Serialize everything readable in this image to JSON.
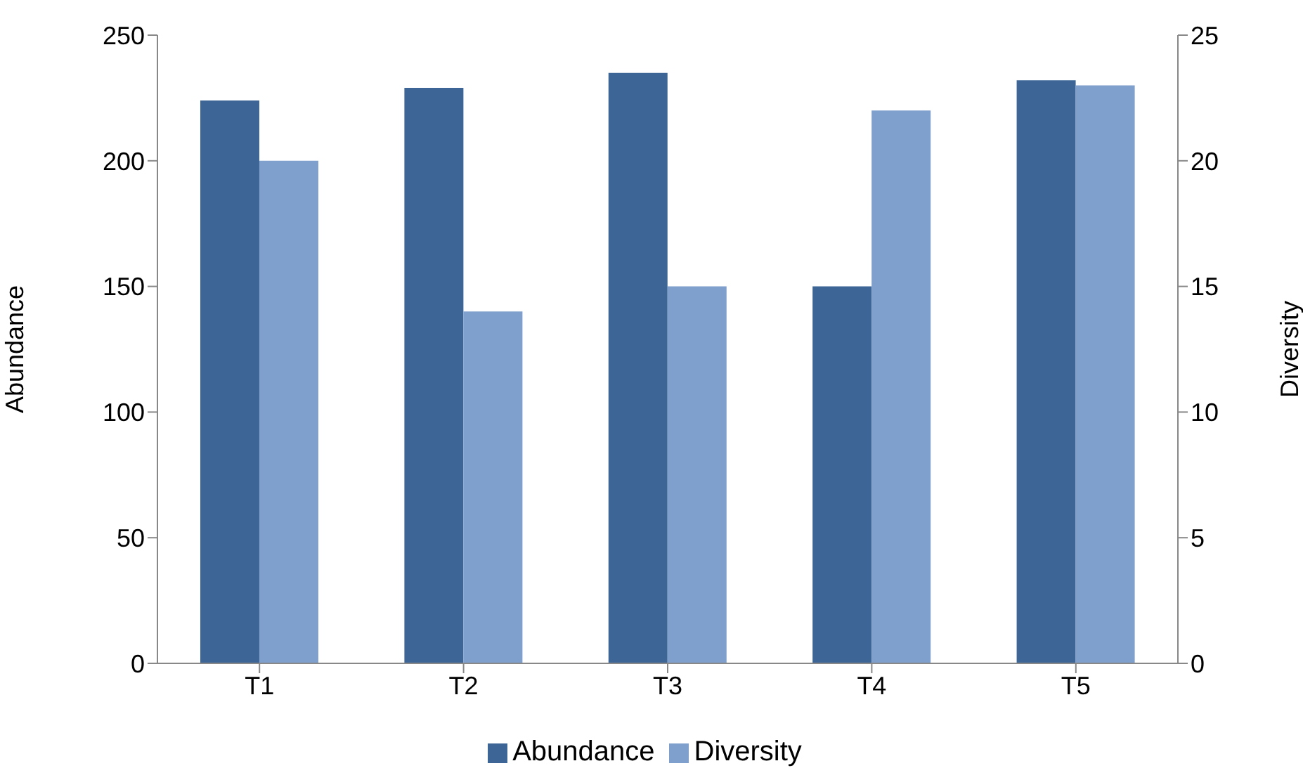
{
  "chart_data": {
    "type": "bar",
    "categories": [
      "T1",
      "T2",
      "T3",
      "T4",
      "T5"
    ],
    "series": [
      {
        "name": "Abundance",
        "color": "#3d6697",
        "values": [
          224,
          229,
          235,
          150,
          232
        ]
      },
      {
        "name": "Diversity",
        "color": "#7f9fcc",
        "values": [
          20,
          14,
          15,
          22,
          23
        ],
        "axis": "y2"
      }
    ],
    "ylabel": "Abundance",
    "y2label": "Diversity",
    "ylim": [
      0,
      250
    ],
    "yticks": [
      0,
      50,
      100,
      150,
      200,
      250
    ],
    "y2lim": [
      0,
      25
    ],
    "y2ticks": [
      0,
      5,
      10,
      15,
      20,
      25
    ],
    "grid": false,
    "legend": "bottom"
  }
}
